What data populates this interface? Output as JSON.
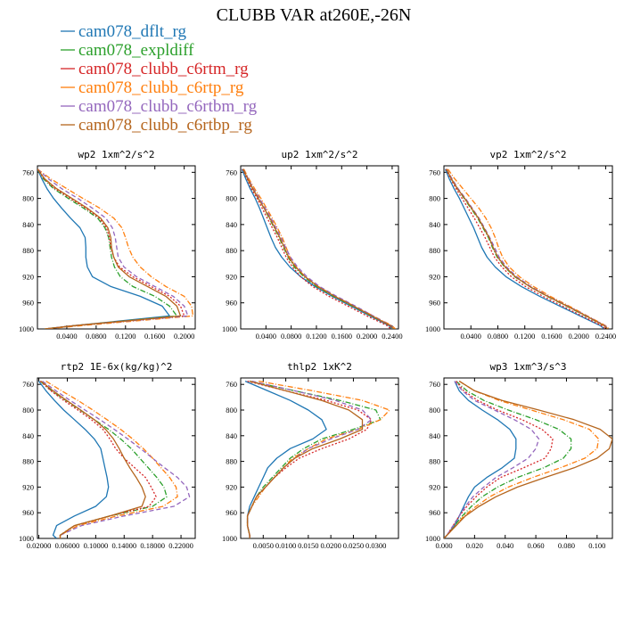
{
  "figure_title": "CLUBB VAR at260E,-26N",
  "legend": [
    {
      "label": "cam078_dflt_rg",
      "color": "#1f77b4",
      "dash": ""
    },
    {
      "label": "cam078_expldiff",
      "color": "#2ca02c",
      "dash": "6,2,1,2"
    },
    {
      "label": "cam078_clubb_c6rtm_rg",
      "color": "#d62728",
      "dash": "2,2"
    },
    {
      "label": "cam078_clubb_c6rtp_rg",
      "color": "#ff7f0e",
      "dash": "6,2,1,2"
    },
    {
      "label": "cam078_clubb_c6rtbm_rg",
      "color": "#9467bd",
      "dash": "5,3"
    },
    {
      "label": "cam078_clubb_c6rtbp_rg",
      "color": "#b5651d",
      "dash": ""
    }
  ],
  "chart_data": [
    {
      "type": "line",
      "title": "wp2  1xm^2/s^2",
      "xlim": [
        0.0,
        0.215
      ],
      "ylim": [
        1000,
        750
      ],
      "xticks": [
        0.04,
        0.08,
        0.12,
        0.16,
        0.2
      ],
      "xtick_labels": [
        "0.0400",
        "0.0800",
        "0.1200",
        "0.1600",
        "0.2000"
      ],
      "yticks": [
        760,
        800,
        840,
        880,
        920,
        960,
        1000
      ],
      "y": [
        755,
        770,
        785,
        800,
        815,
        830,
        845,
        860,
        875,
        890,
        905,
        920,
        935,
        950,
        965,
        980,
        995,
        1000
      ],
      "series": [
        {
          "values": [
            0.0,
            0.006,
            0.013,
            0.022,
            0.033,
            0.045,
            0.058,
            0.065,
            0.066,
            0.066,
            0.068,
            0.075,
            0.1,
            0.14,
            0.17,
            0.18,
            0.05,
            0.01
          ]
        },
        {
          "values": [
            0.0,
            0.008,
            0.022,
            0.042,
            0.063,
            0.082,
            0.092,
            0.097,
            0.099,
            0.101,
            0.105,
            0.113,
            0.13,
            0.16,
            0.18,
            0.19,
            0.05,
            0.01
          ]
        },
        {
          "values": [
            0.0,
            0.009,
            0.024,
            0.045,
            0.066,
            0.084,
            0.094,
            0.098,
            0.1,
            0.104,
            0.112,
            0.13,
            0.155,
            0.18,
            0.195,
            0.2,
            0.05,
            0.01
          ]
        },
        {
          "values": [
            0.0,
            0.018,
            0.04,
            0.062,
            0.085,
            0.104,
            0.115,
            0.12,
            0.124,
            0.13,
            0.14,
            0.155,
            0.175,
            0.2,
            0.21,
            0.212,
            0.06,
            0.01
          ]
        },
        {
          "values": [
            0.0,
            0.015,
            0.033,
            0.055,
            0.075,
            0.093,
            0.102,
            0.106,
            0.108,
            0.11,
            0.118,
            0.135,
            0.16,
            0.185,
            0.2,
            0.205,
            0.05,
            0.01
          ]
        },
        {
          "values": [
            0.0,
            0.01,
            0.026,
            0.047,
            0.068,
            0.086,
            0.096,
            0.1,
            0.101,
            0.104,
            0.11,
            0.125,
            0.15,
            0.175,
            0.19,
            0.195,
            0.05,
            0.01
          ]
        }
      ]
    },
    {
      "type": "line",
      "title": "up2  1xm^2/s^2",
      "xlim": [
        0.0,
        0.25
      ],
      "ylim": [
        1000,
        750
      ],
      "xticks": [
        0.04,
        0.08,
        0.12,
        0.16,
        0.2,
        0.24
      ],
      "xtick_labels": [
        "0.0400",
        "0.0800",
        "0.1200",
        "0.1600",
        "0.2000",
        "0.2400"
      ],
      "yticks": [
        760,
        800,
        840,
        880,
        920,
        960,
        1000
      ],
      "y": [
        755,
        770,
        785,
        800,
        815,
        830,
        845,
        860,
        875,
        890,
        905,
        920,
        935,
        950,
        965,
        980,
        995,
        1000
      ],
      "series": [
        {
          "values": [
            0.002,
            0.008,
            0.015,
            0.023,
            0.03,
            0.036,
            0.042,
            0.048,
            0.055,
            0.065,
            0.078,
            0.095,
            0.118,
            0.145,
            0.175,
            0.205,
            0.235,
            0.24
          ]
        },
        {
          "values": [
            0.004,
            0.011,
            0.019,
            0.028,
            0.037,
            0.045,
            0.053,
            0.061,
            0.068,
            0.075,
            0.085,
            0.1,
            0.12,
            0.147,
            0.177,
            0.207,
            0.237,
            0.242
          ]
        },
        {
          "values": [
            0.003,
            0.01,
            0.017,
            0.026,
            0.034,
            0.042,
            0.05,
            0.058,
            0.065,
            0.072,
            0.082,
            0.095,
            0.114,
            0.14,
            0.17,
            0.2,
            0.232,
            0.238
          ]
        },
        {
          "values": [
            0.005,
            0.013,
            0.022,
            0.032,
            0.041,
            0.05,
            0.058,
            0.066,
            0.072,
            0.078,
            0.088,
            0.102,
            0.123,
            0.15,
            0.18,
            0.21,
            0.24,
            0.245
          ]
        },
        {
          "values": [
            0.004,
            0.012,
            0.02,
            0.03,
            0.039,
            0.048,
            0.056,
            0.064,
            0.071,
            0.079,
            0.09,
            0.105,
            0.125,
            0.152,
            0.182,
            0.21,
            0.238,
            0.243
          ]
        },
        {
          "values": [
            0.004,
            0.011,
            0.019,
            0.028,
            0.037,
            0.046,
            0.054,
            0.062,
            0.069,
            0.076,
            0.087,
            0.102,
            0.122,
            0.149,
            0.179,
            0.208,
            0.237,
            0.242
          ]
        }
      ]
    },
    {
      "type": "line",
      "title": "vp2  1xm^2/s^2",
      "xlim": [
        0.0,
        0.25
      ],
      "ylim": [
        1000,
        750
      ],
      "xticks": [
        0.04,
        0.08,
        0.12,
        0.16,
        0.2,
        0.24
      ],
      "xtick_labels": [
        "0.0400",
        "0.0800",
        "0.1200",
        "0.1600",
        "0.2000",
        "0.2400"
      ],
      "yticks": [
        760,
        800,
        840,
        880,
        920,
        960,
        1000
      ],
      "y": [
        755,
        770,
        785,
        800,
        815,
        830,
        845,
        860,
        875,
        890,
        905,
        920,
        935,
        950,
        965,
        980,
        995,
        1000
      ],
      "series": [
        {
          "values": [
            0.002,
            0.008,
            0.015,
            0.023,
            0.03,
            0.037,
            0.044,
            0.05,
            0.056,
            0.064,
            0.076,
            0.092,
            0.115,
            0.142,
            0.172,
            0.202,
            0.232,
            0.238
          ]
        },
        {
          "values": [
            0.004,
            0.011,
            0.02,
            0.03,
            0.04,
            0.05,
            0.058,
            0.066,
            0.072,
            0.079,
            0.09,
            0.105,
            0.127,
            0.153,
            0.182,
            0.21,
            0.238,
            0.243
          ]
        },
        {
          "values": [
            0.003,
            0.01,
            0.018,
            0.027,
            0.036,
            0.045,
            0.053,
            0.061,
            0.068,
            0.075,
            0.086,
            0.1,
            0.121,
            0.147,
            0.176,
            0.205,
            0.234,
            0.24
          ]
        },
        {
          "values": [
            0.006,
            0.016,
            0.028,
            0.04,
            0.052,
            0.062,
            0.07,
            0.076,
            0.081,
            0.087,
            0.097,
            0.112,
            0.133,
            0.158,
            0.186,
            0.213,
            0.24,
            0.245
          ]
        },
        {
          "values": [
            0.004,
            0.012,
            0.021,
            0.032,
            0.042,
            0.052,
            0.06,
            0.068,
            0.075,
            0.082,
            0.093,
            0.108,
            0.129,
            0.155,
            0.184,
            0.212,
            0.239,
            0.244
          ]
        },
        {
          "values": [
            0.004,
            0.011,
            0.02,
            0.031,
            0.041,
            0.051,
            0.059,
            0.067,
            0.073,
            0.08,
            0.091,
            0.106,
            0.127,
            0.154,
            0.183,
            0.211,
            0.238,
            0.243
          ]
        }
      ]
    },
    {
      "type": "line",
      "title": "rtp2  1E-6x(kg/kg)^2",
      "xlim": [
        0.018,
        0.24
      ],
      "ylim": [
        1000,
        750
      ],
      "xticks": [
        0.02,
        0.06,
        0.1,
        0.14,
        0.18,
        0.22
      ],
      "xtick_labels": [
        "0.02000",
        "0.06000",
        "0.10000",
        "0.14000",
        "0.18000",
        "0.22000"
      ],
      "yticks": [
        760,
        800,
        840,
        880,
        920,
        960,
        1000
      ],
      "y": [
        755,
        770,
        785,
        800,
        815,
        830,
        845,
        860,
        875,
        890,
        905,
        920,
        935,
        950,
        965,
        980,
        995,
        1000
      ],
      "series": [
        {
          "values": [
            0.02,
            0.03,
            0.042,
            0.055,
            0.07,
            0.085,
            0.098,
            0.107,
            0.11,
            0.113,
            0.116,
            0.118,
            0.115,
            0.1,
            0.07,
            0.045,
            0.04,
            0.045
          ]
        },
        {
          "values": [
            0.022,
            0.038,
            0.058,
            0.078,
            0.098,
            0.118,
            0.135,
            0.15,
            0.162,
            0.174,
            0.186,
            0.196,
            0.2,
            0.18,
            0.12,
            0.07,
            0.05,
            0.05
          ]
        },
        {
          "values": [
            0.022,
            0.037,
            0.055,
            0.075,
            0.094,
            0.11,
            0.12,
            0.128,
            0.14,
            0.155,
            0.17,
            0.178,
            0.185,
            0.175,
            0.12,
            0.07,
            0.05,
            0.05
          ]
        },
        {
          "values": [
            0.03,
            0.052,
            0.075,
            0.096,
            0.116,
            0.135,
            0.152,
            0.167,
            0.18,
            0.192,
            0.204,
            0.213,
            0.215,
            0.195,
            0.13,
            0.075,
            0.05,
            0.05
          ]
        },
        {
          "values": [
            0.025,
            0.044,
            0.064,
            0.085,
            0.106,
            0.126,
            0.145,
            0.163,
            0.18,
            0.197,
            0.215,
            0.228,
            0.232,
            0.21,
            0.14,
            0.08,
            0.05,
            0.05
          ]
        },
        {
          "values": [
            0.023,
            0.04,
            0.059,
            0.079,
            0.098,
            0.114,
            0.125,
            0.133,
            0.14,
            0.148,
            0.157,
            0.165,
            0.17,
            0.165,
            0.12,
            0.07,
            0.05,
            0.05
          ]
        }
      ]
    },
    {
      "type": "line",
      "title": "thlp2  1xK^2",
      "xlim": [
        0.0,
        0.035
      ],
      "ylim": [
        1000,
        750
      ],
      "xticks": [
        0.005,
        0.01,
        0.015,
        0.02,
        0.025,
        0.03
      ],
      "xtick_labels": [
        "0.0050",
        "0.0100",
        "0.0150",
        "0.0200",
        "0.0250",
        "0.0300"
      ],
      "yticks": [
        760,
        800,
        840,
        880,
        920,
        960,
        1000
      ],
      "y": [
        755,
        770,
        785,
        800,
        815,
        830,
        845,
        860,
        875,
        890,
        905,
        920,
        935,
        950,
        965,
        980,
        995,
        1000
      ],
      "series": [
        {
          "values": [
            0.001,
            0.006,
            0.011,
            0.015,
            0.018,
            0.019,
            0.016,
            0.011,
            0.008,
            0.006,
            0.005,
            0.004,
            0.003,
            0.002,
            0.0015,
            0.0015,
            0.002,
            0.002
          ]
        },
        {
          "values": [
            0.002,
            0.012,
            0.022,
            0.03,
            0.031,
            0.025,
            0.018,
            0.014,
            0.011,
            0.009,
            0.007,
            0.005,
            0.0035,
            0.0025,
            0.0015,
            0.0015,
            0.002,
            0.002
          ]
        },
        {
          "values": [
            0.0015,
            0.01,
            0.019,
            0.026,
            0.029,
            0.028,
            0.024,
            0.018,
            0.013,
            0.01,
            0.0075,
            0.0055,
            0.0035,
            0.0025,
            0.0015,
            0.0015,
            0.002,
            0.002
          ]
        },
        {
          "values": [
            0.004,
            0.016,
            0.027,
            0.033,
            0.031,
            0.026,
            0.019,
            0.015,
            0.0115,
            0.0095,
            0.0075,
            0.0055,
            0.004,
            0.0025,
            0.0015,
            0.0015,
            0.002,
            0.002
          ]
        },
        {
          "values": [
            0.0025,
            0.012,
            0.021,
            0.027,
            0.029,
            0.026,
            0.02,
            0.015,
            0.012,
            0.0095,
            0.0075,
            0.0055,
            0.0035,
            0.0025,
            0.0015,
            0.0015,
            0.002,
            0.002
          ]
        },
        {
          "values": [
            0.002,
            0.01,
            0.018,
            0.024,
            0.027,
            0.027,
            0.022,
            0.016,
            0.012,
            0.0095,
            0.0075,
            0.0055,
            0.0035,
            0.0025,
            0.0015,
            0.0015,
            0.002,
            0.002
          ]
        }
      ]
    },
    {
      "type": "line",
      "title": "wp3  1xm^3/s^3",
      "xlim": [
        0.0,
        0.11
      ],
      "ylim": [
        1000,
        750
      ],
      "xticks": [
        0.0,
        0.02,
        0.04,
        0.06,
        0.08,
        0.1
      ],
      "xtick_labels": [
        "0.000",
        "0.020",
        "0.040",
        "0.060",
        "0.080",
        "0.100"
      ],
      "yticks": [
        760,
        800,
        840,
        880,
        920,
        960,
        1000
      ],
      "y": [
        755,
        770,
        785,
        800,
        815,
        830,
        845,
        860,
        875,
        890,
        905,
        920,
        935,
        950,
        965,
        980,
        995,
        1000
      ],
      "series": [
        {
          "values": [
            0.007,
            0.01,
            0.016,
            0.025,
            0.035,
            0.043,
            0.047,
            0.047,
            0.046,
            0.038,
            0.028,
            0.02,
            0.016,
            0.013,
            0.01,
            0.007,
            0.002,
            0.0
          ]
        },
        {
          "values": [
            0.008,
            0.015,
            0.026,
            0.042,
            0.06,
            0.075,
            0.083,
            0.083,
            0.078,
            0.065,
            0.048,
            0.035,
            0.025,
            0.018,
            0.012,
            0.007,
            0.002,
            0.0
          ]
        },
        {
          "values": [
            0.008,
            0.013,
            0.022,
            0.035,
            0.051,
            0.064,
            0.071,
            0.07,
            0.066,
            0.052,
            0.037,
            0.028,
            0.021,
            0.015,
            0.01,
            0.006,
            0.002,
            0.0
          ]
        },
        {
          "values": [
            0.01,
            0.02,
            0.036,
            0.057,
            0.078,
            0.095,
            0.101,
            0.1,
            0.092,
            0.076,
            0.058,
            0.042,
            0.03,
            0.021,
            0.013,
            0.008,
            0.002,
            0.0
          ]
        },
        {
          "values": [
            0.007,
            0.012,
            0.02,
            0.033,
            0.046,
            0.057,
            0.062,
            0.06,
            0.055,
            0.045,
            0.034,
            0.026,
            0.019,
            0.014,
            0.01,
            0.006,
            0.002,
            0.0
          ]
        },
        {
          "values": [
            0.01,
            0.02,
            0.038,
            0.062,
            0.085,
            0.102,
            0.11,
            0.108,
            0.1,
            0.085,
            0.066,
            0.048,
            0.034,
            0.023,
            0.014,
            0.008,
            0.002,
            0.0
          ]
        }
      ]
    }
  ]
}
